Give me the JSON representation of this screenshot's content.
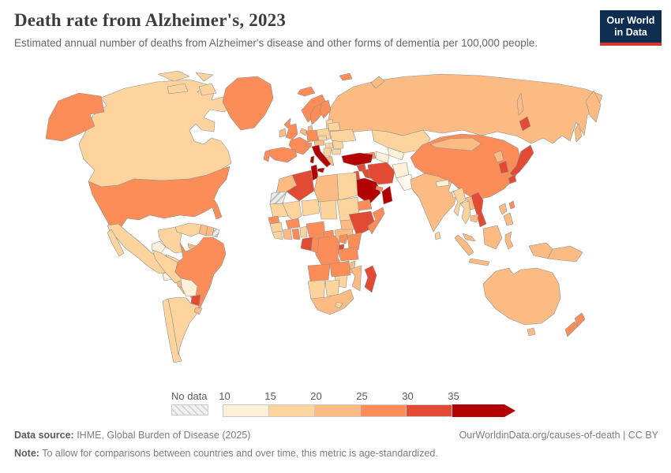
{
  "header": {
    "title": "Death rate from Alzheimer's, 2023",
    "subtitle": "Estimated annual number of deaths from Alzheimer's disease and other forms of dementia per 100,000 people.",
    "logo_line1": "Our World",
    "logo_line2": "in Data"
  },
  "footer": {
    "source_label": "Data source:",
    "source_text": " IHME, Global Burden of Disease (2025)",
    "link_text": "OurWorldinData.org/causes-of-death | CC BY",
    "note_label": "Note:",
    "note_text": " To allow for comparisons between countries and over time, this metric is age-standardized."
  },
  "colors": {
    "logo_navy": "#0d2d51",
    "logo_red": "#d7382e",
    "map_border": "#8f8f8f",
    "title_text": "#3d3d3d",
    "body_text": "#666666"
  },
  "chart_data": {
    "type": "choropleth_map",
    "title": "Death rate from Alzheimer's, 2023",
    "year": 2023,
    "unit": "deaths per 100,000 people (age-standardized)",
    "legend": {
      "no_data_label": "No data",
      "thresholds": [
        10,
        15,
        20,
        25,
        30,
        35
      ],
      "tick_labels": [
        "10",
        "15",
        "20",
        "25",
        "30",
        "35"
      ],
      "colors": [
        "#fef0d9",
        "#fdd49e",
        "#fdbb84",
        "#fc8d59",
        "#e34a33",
        "#b30000"
      ],
      "under_color": "#fff7ec",
      "no_data_pattern": "diagonal-hatch"
    },
    "values": {
      "CAN": 17,
      "USA": 27,
      "GRL": 27,
      "MEX": 16,
      "GTM": 13,
      "HND": 27,
      "NIC": 22,
      "CRI": 22,
      "PAN": 22,
      "CUB": 22,
      "HTI": 17,
      "DOM": 22,
      "JAM": 22,
      "VEN": 17,
      "COL": 17,
      "GUY": 22,
      "SUR": 22,
      "GUF": null,
      "ECU": 13,
      "PER": 17,
      "BRA": 27,
      "BOL": 12,
      "PRY": 32,
      "CHL": 17,
      "ARG": 17,
      "URY": 22,
      "ISL": 27,
      "GBR": 27,
      "IRL": 22,
      "NOR": 27,
      "SWE": 27,
      "FIN": 27,
      "DNK": 22,
      "BLT": 17,
      "POL": 17,
      "DEU": 27,
      "BNL": 22,
      "FRA": 27,
      "ESP": 27,
      "PRT": 27,
      "ITA": 37,
      "CHE": 27,
      "AUT": 22,
      "CZE": 17,
      "HUN": 17,
      "ROU": 16,
      "SRB": 16,
      "GRC": 22,
      "BGR": 17,
      "UKR": 16,
      "BLR": 16,
      "RUS": 22,
      "KAZ": 16,
      "UZB": 12,
      "TKM": 12,
      "KGZ": 26,
      "TJK": 22,
      "CAU": 27,
      "TUR": 36,
      "SYR": 32,
      "IRQ": 32,
      "IRN": 32,
      "AFG": 12,
      "PAK": 8,
      "ISR": 31,
      "SAU": 36,
      "ARE": 27,
      "OMN": 38,
      "YEM": 27,
      "MAR": 22,
      "ESH": null,
      "DZA": 34,
      "TUN": 36,
      "LBY": 22,
      "EGY": 17,
      "MRT": 16,
      "MLI": 16,
      "NER": 16,
      "TCD": 17,
      "SDN": 17,
      "ERI": 21,
      "SEN": 26,
      "GIN": 16,
      "LBR": 16,
      "CIV": 21,
      "GHA": 26,
      "BFA": 26,
      "BEN": 16,
      "NGA": 26,
      "CMR": 26,
      "CAF": 21,
      "SSD": 21,
      "ETH": 33,
      "SOM": 26,
      "KEN": 26,
      "UGA": 26,
      "RWA": 32,
      "COD": 26,
      "GAB": 33,
      "COG": 26,
      "TZA": 26,
      "AGO": 26,
      "ZMB": 26,
      "MWI": 21,
      "MOZ": 21,
      "ZWE": 16,
      "NAM": 16,
      "BWA": 16,
      "ZAF": 21,
      "LSO": 16,
      "MDG": 33,
      "IND": 20,
      "NPL": 13,
      "BGD": 13,
      "LKA": 18,
      "CHN": 27,
      "MNG": 22,
      "PRK": 21,
      "KOR": 33,
      "JPN": 33,
      "TWN": 27,
      "MMR": 17,
      "THA": 17,
      "VNM": 33,
      "LAO": 21,
      "KHM": 21,
      "MYS": 22,
      "IDN": 22,
      "PHL": 22,
      "PNG": 21,
      "AUS": 21,
      "NZL": 27
    }
  }
}
